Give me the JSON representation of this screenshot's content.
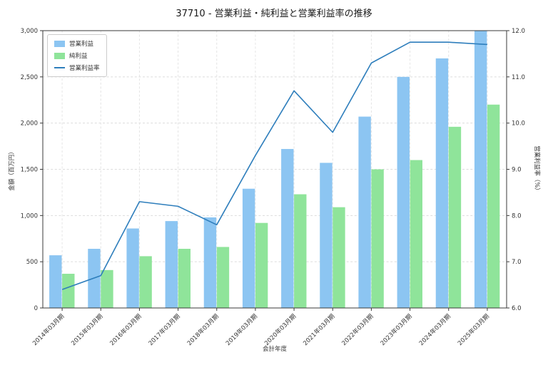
{
  "title": "37710 - 営業利益・純利益と営業利益率の推移",
  "chart_data": {
    "type": "bar",
    "subtype": "bar-and-line-combo",
    "categories": [
      "2014年03月期",
      "2015年03月期",
      "2016年03月期",
      "2017年03月期",
      "2018年03月期",
      "2019年03月期",
      "2020年03月期",
      "2021年03月期",
      "2022年03月期",
      "2023年03月期",
      "2024年03月期",
      "2025年03月期"
    ],
    "series": [
      {
        "key": "operating-profit",
        "name": "営業利益",
        "type": "bar",
        "axis": "left",
        "color": "#8cc5f2",
        "values": [
          570,
          640,
          860,
          940,
          980,
          1290,
          1720,
          1570,
          2070,
          2500,
          2700,
          3000
        ]
      },
      {
        "key": "net-profit",
        "name": "純利益",
        "type": "bar",
        "axis": "left",
        "color": "#8fe49a",
        "values": [
          370,
          410,
          560,
          640,
          660,
          920,
          1230,
          1090,
          1500,
          1600,
          1960,
          2200
        ]
      },
      {
        "key": "operating-margin",
        "name": "営業利益率",
        "type": "line",
        "axis": "right",
        "color": "#2e7ebc",
        "values": [
          6.4,
          6.7,
          8.3,
          8.2,
          7.8,
          9.3,
          10.7,
          9.8,
          11.3,
          11.75,
          11.75,
          11.7
        ]
      }
    ],
    "xlabel": "会計年度",
    "ylabel_left": "金額（百万円）",
    "ylabel_right": "営業利益率（%）",
    "ylim_left": [
      0,
      3000
    ],
    "ylim_right": [
      6.0,
      12.0
    ],
    "yticks_left": [
      "0",
      "500",
      "1,000",
      "1,500",
      "2,000",
      "2,500",
      "3,000"
    ],
    "yticks_right": [
      "6.0",
      "7.0",
      "8.0",
      "9.0",
      "10.0",
      "11.0",
      "12.0"
    ],
    "grid": true,
    "legend_position": "upper left"
  }
}
